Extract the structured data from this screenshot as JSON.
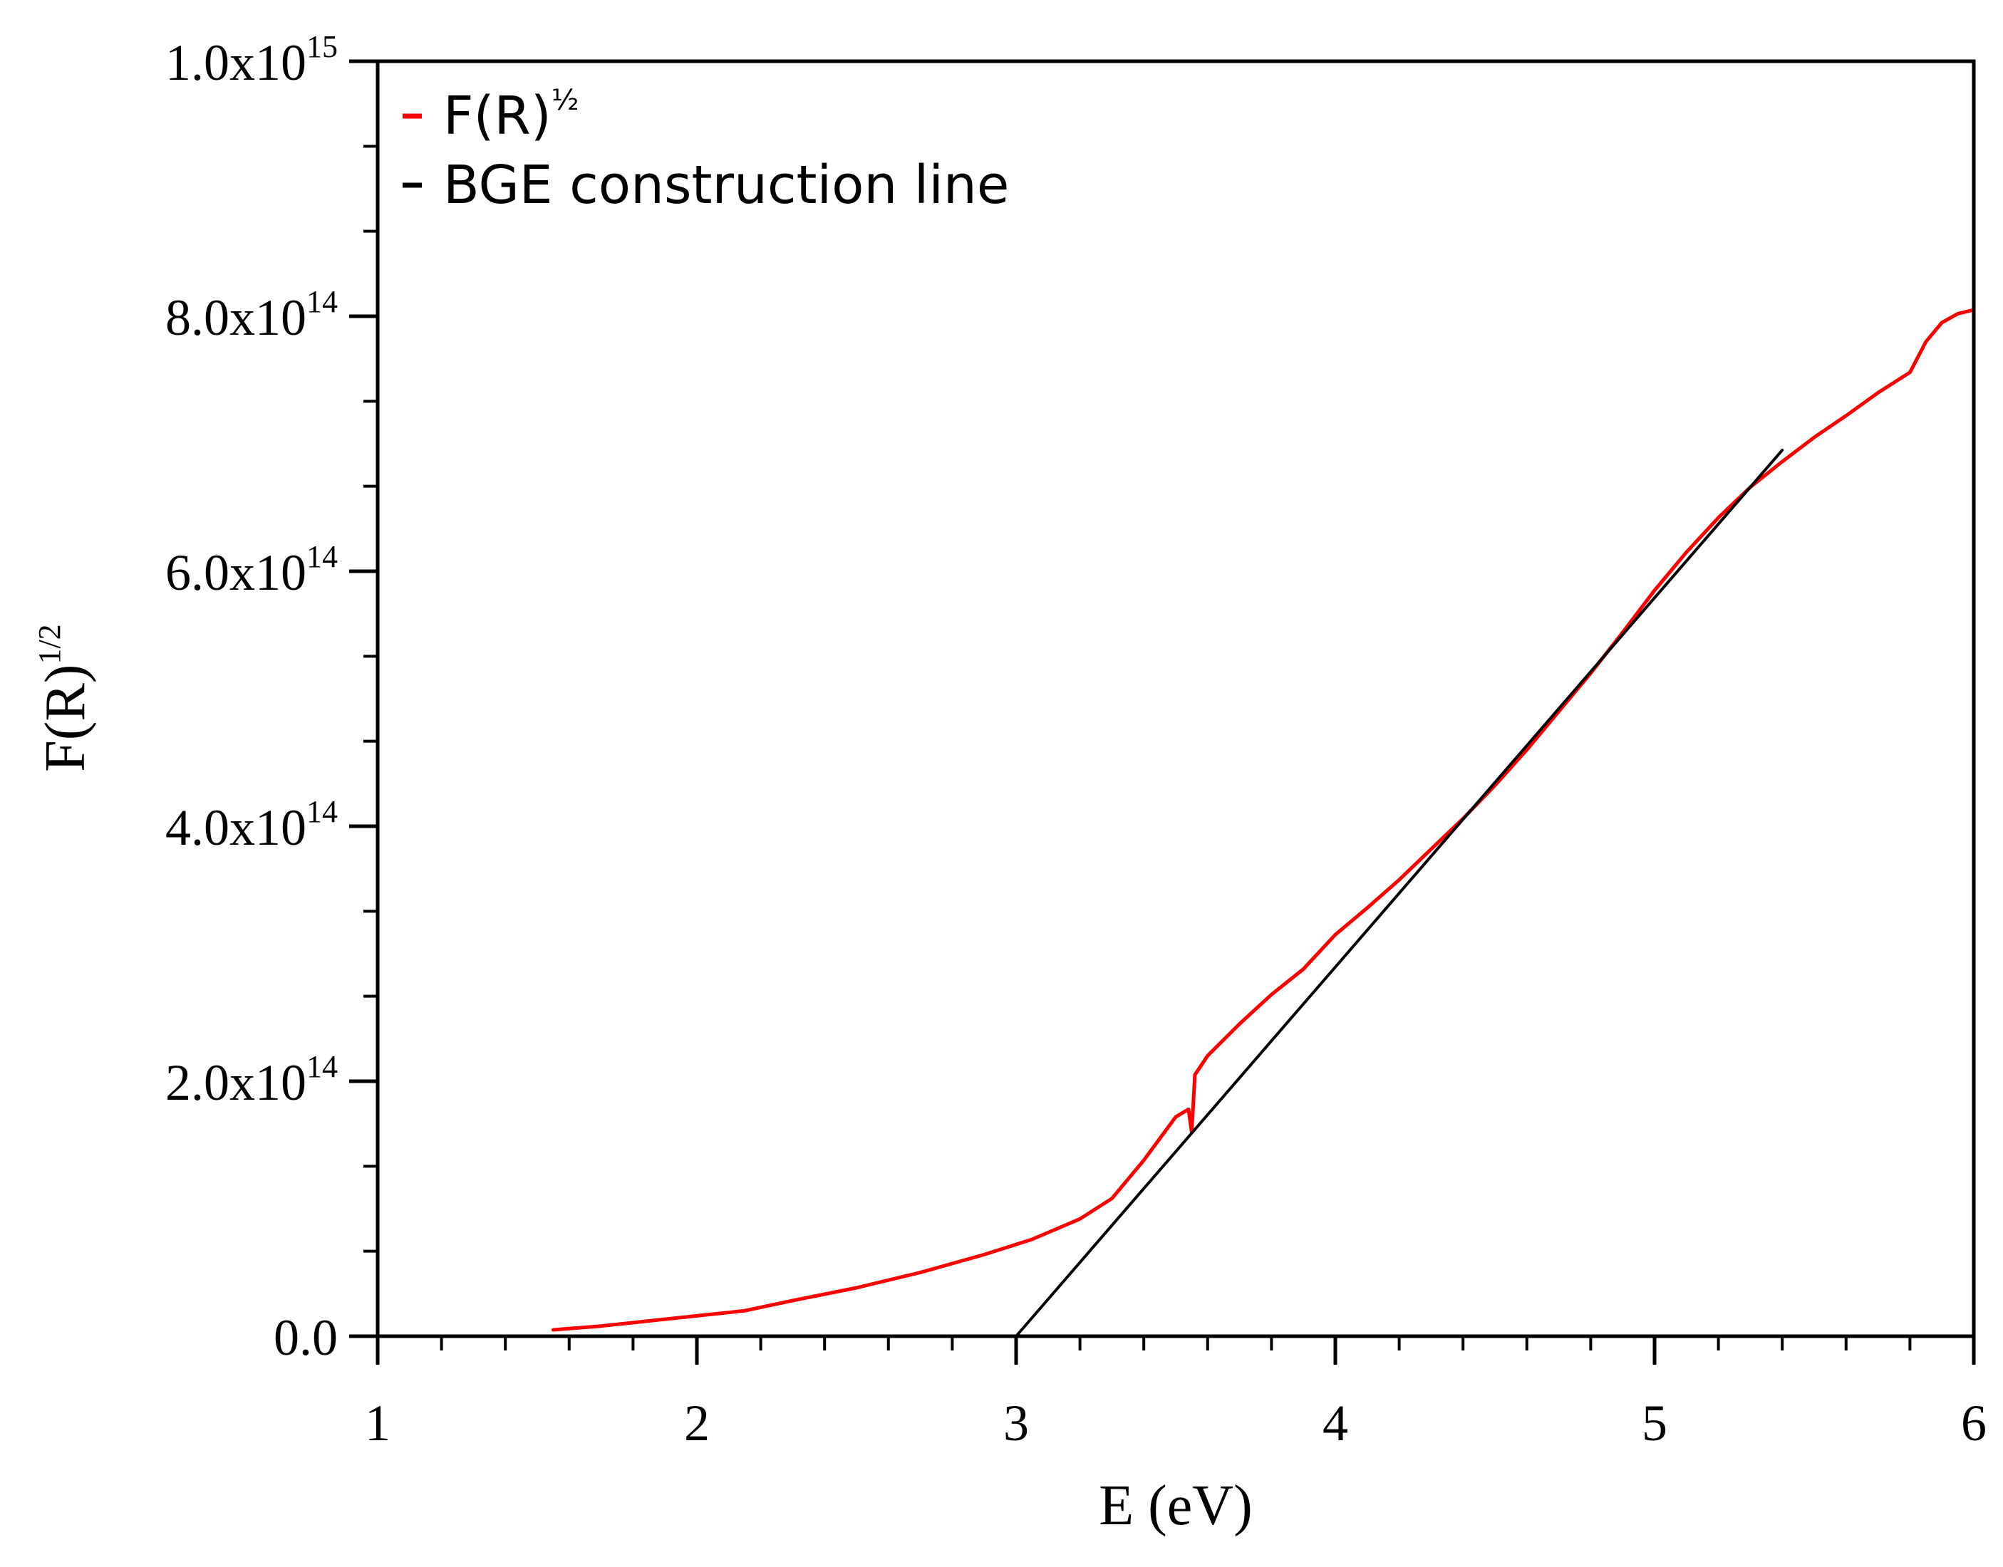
{
  "chart_data": {
    "type": "line",
    "title": "",
    "xlabel": "E (eV)",
    "ylabel": {
      "base": "F(R)",
      "sup": "1/2"
    },
    "xlim": [
      1,
      6
    ],
    "ylim": [
      0,
      1000000000000000.0
    ],
    "x_ticks": [
      {
        "value": 1,
        "label": "1"
      },
      {
        "value": 2,
        "label": "2"
      },
      {
        "value": 3,
        "label": "3"
      },
      {
        "value": 4,
        "label": "4"
      },
      {
        "value": 5,
        "label": "5"
      },
      {
        "value": 6,
        "label": "6"
      }
    ],
    "x_minor_step": 0.2,
    "y_ticks": [
      {
        "value": 0,
        "mantissa": "0.0",
        "exponent": ""
      },
      {
        "value": 200000000000000.0,
        "mantissa": "2.0x10",
        "exponent": "14"
      },
      {
        "value": 400000000000000.0,
        "mantissa": "4.0x10",
        "exponent": "14"
      },
      {
        "value": 600000000000000.0,
        "mantissa": "6.0x10",
        "exponent": "14"
      },
      {
        "value": 800000000000000.0,
        "mantissa": "8.0x10",
        "exponent": "14"
      },
      {
        "value": 1000000000000000.0,
        "mantissa": "1.0x10",
        "exponent": "15"
      }
    ],
    "y_minor_step": 66667000000000.0,
    "legend": {
      "position": "top-left",
      "entries": [
        {
          "label": "F(R)",
          "sup": "½",
          "color": "#ff0000"
        },
        {
          "label": "BGE construction line",
          "sup": "",
          "color": "#000000"
        }
      ]
    },
    "series": [
      {
        "name": "F(R)½",
        "color": "#ff0000",
        "x": [
          1.55,
          1.7,
          1.85,
          2.0,
          2.15,
          2.3,
          2.5,
          2.7,
          2.9,
          3.05,
          3.2,
          3.3,
          3.4,
          3.5,
          3.54,
          3.55,
          3.56,
          3.6,
          3.7,
          3.8,
          3.9,
          4.0,
          4.1,
          4.2,
          4.3,
          4.4,
          4.5,
          4.6,
          4.7,
          4.8,
          4.9,
          5.0,
          5.1,
          5.2,
          5.3,
          5.4,
          5.5,
          5.6,
          5.7,
          5.8,
          5.85,
          5.9,
          5.95,
          6.0
        ],
        "y": [
          5000000000000.0,
          8000000000000.0,
          12000000000000.0,
          16000000000000.0,
          20000000000000.0,
          28000000000000.0,
          38000000000000.0,
          50000000000000.0,
          64000000000000.0,
          76000000000000.0,
          92000000000000.0,
          108000000000000.0,
          138000000000000.0,
          172000000000000.0,
          178000000000000.0,
          160000000000000.0,
          205000000000000.0,
          220000000000000.0,
          245000000000000.0,
          268000000000000.0,
          288000000000000.0,
          315000000000000.0,
          336000000000000.0,
          358000000000000.0,
          382000000000000.0,
          406000000000000.0,
          432000000000000.0,
          460000000000000.0,
          490000000000000.0,
          520000000000000.0,
          552000000000000.0,
          585000000000000.0,
          615000000000000.0,
          642000000000000.0,
          666000000000000.0,
          686000000000000.0,
          705000000000000.0,
          722000000000000.0,
          740000000000000.0,
          756000000000000.0,
          780000000000000.0,
          795000000000000.0,
          802000000000000.0,
          805000000000000.0
        ]
      },
      {
        "name": "BGE construction line",
        "color": "#000000",
        "x": [
          3.0,
          5.4
        ],
        "y": [
          0,
          695000000000000.0
        ]
      }
    ]
  }
}
